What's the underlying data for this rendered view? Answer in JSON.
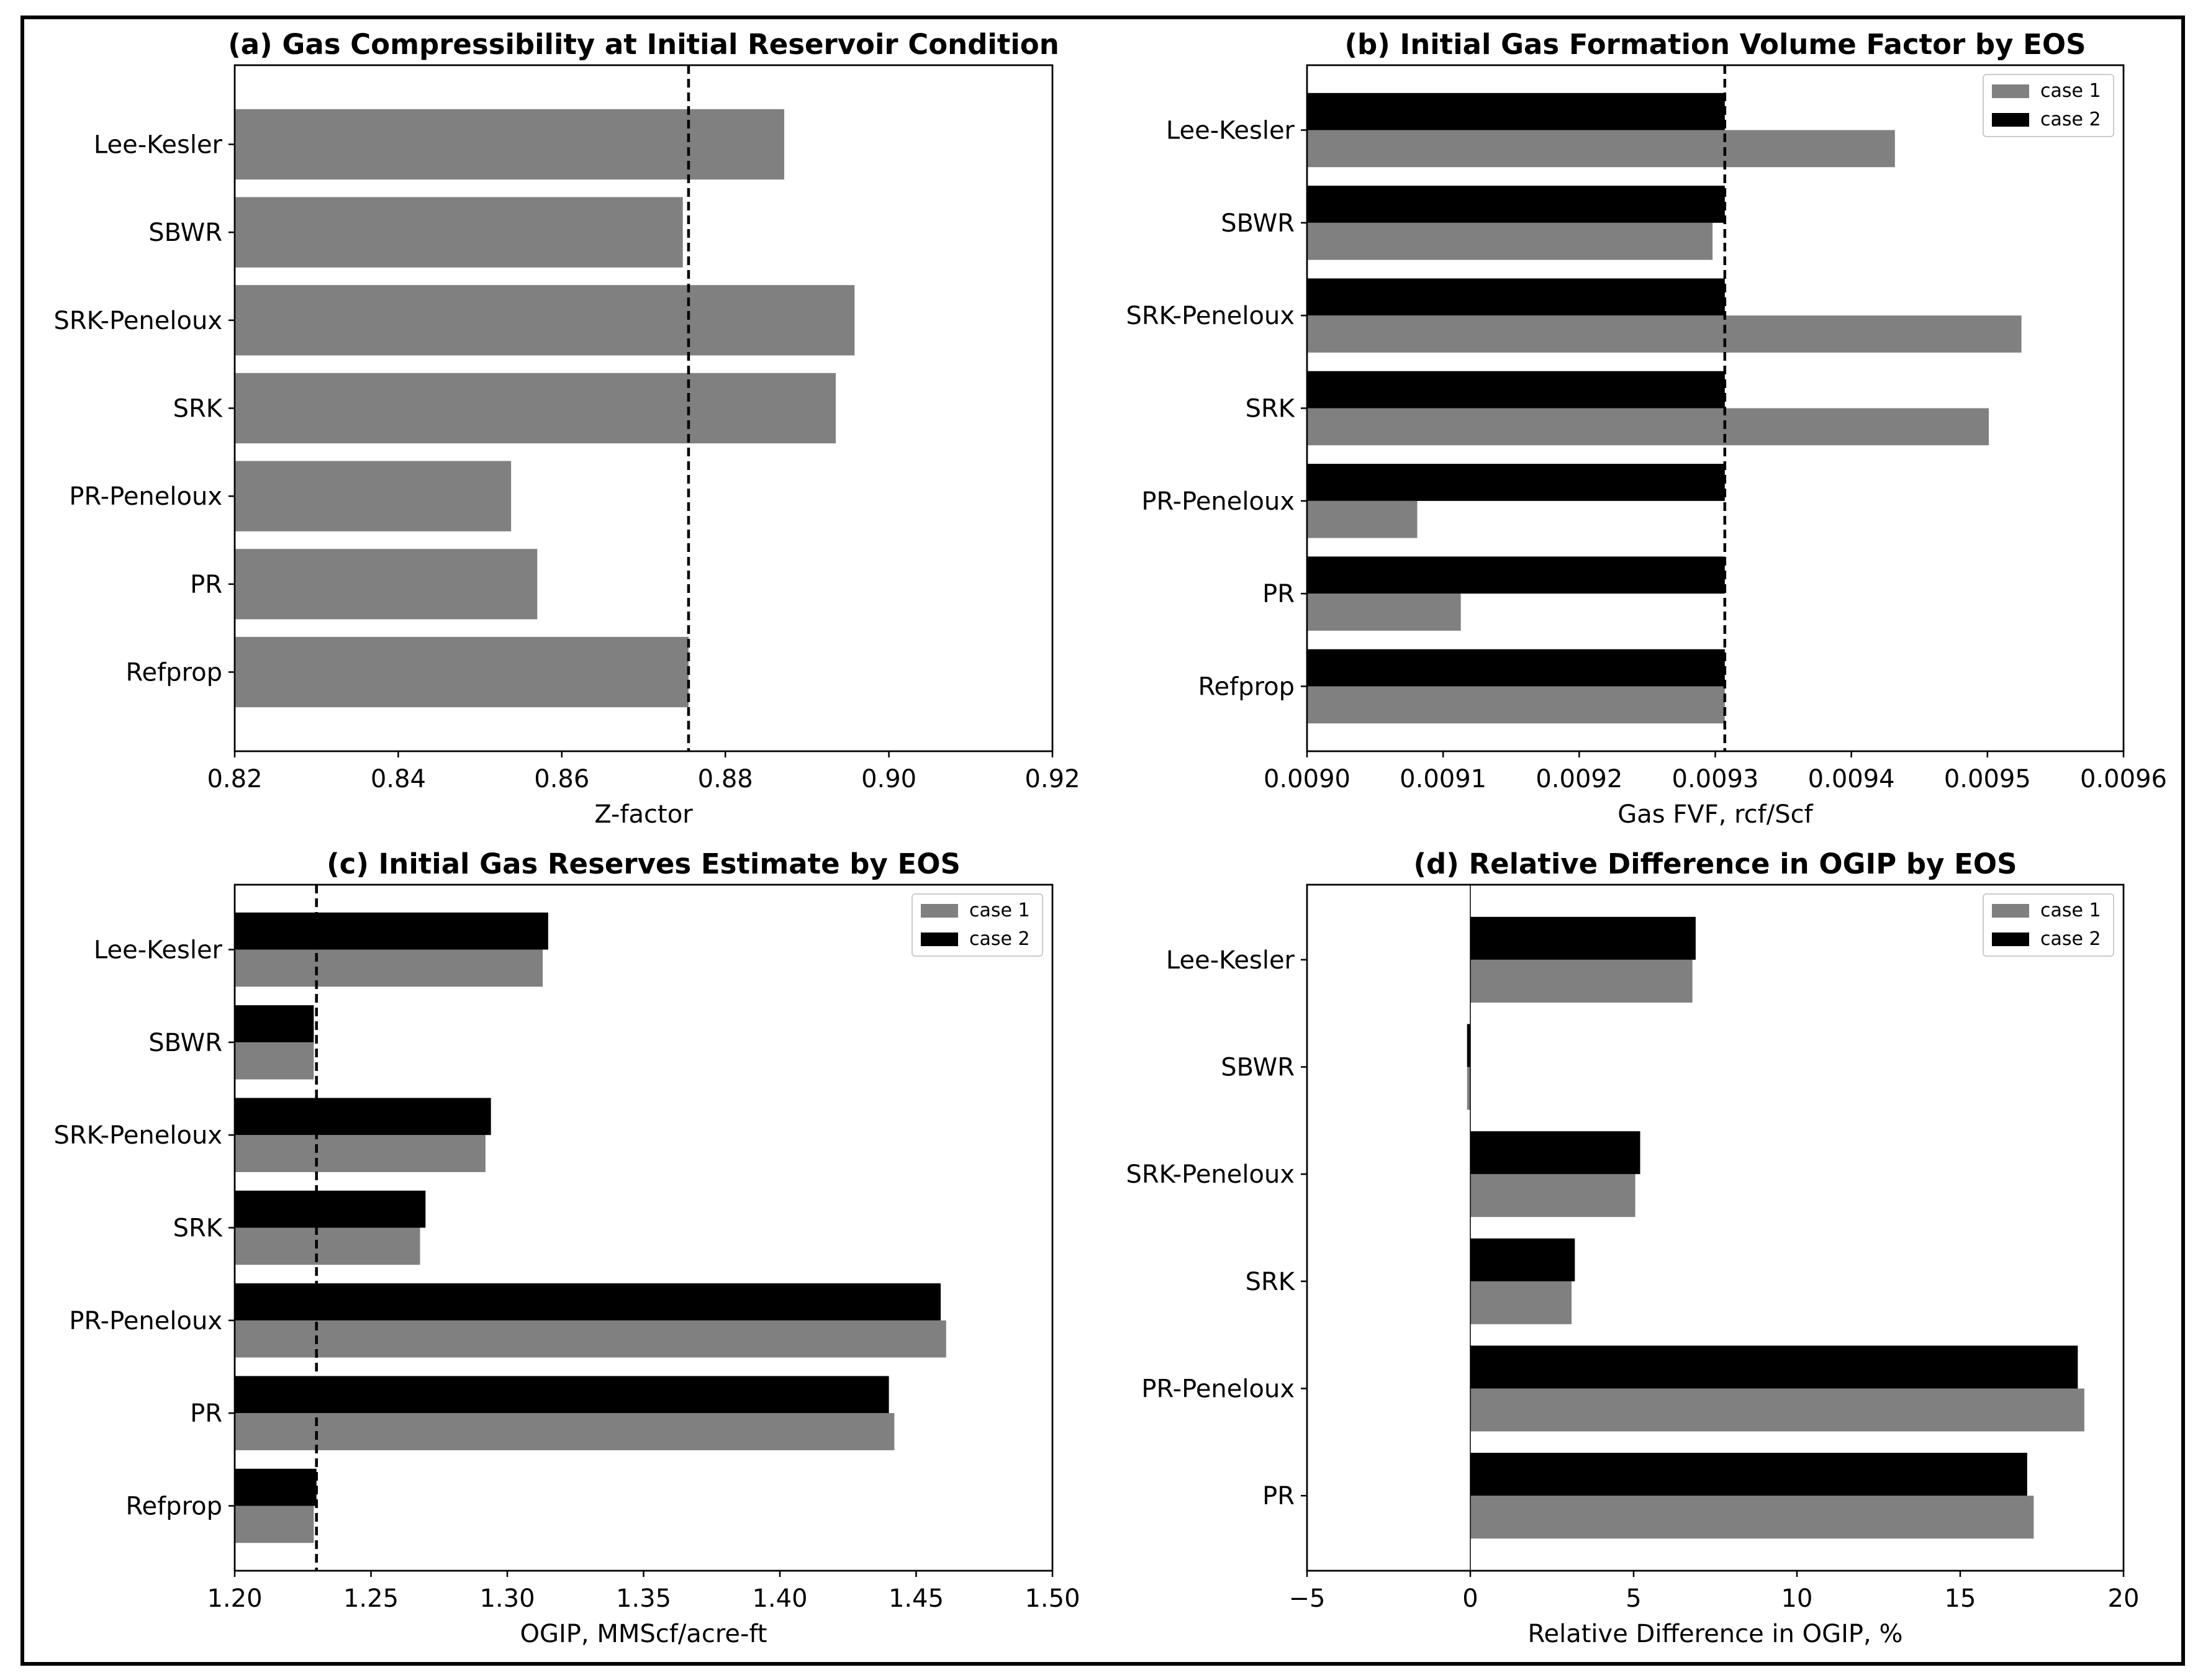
{
  "colors": {
    "case1": "#808080",
    "case2": "#000000"
  },
  "chart_data": [
    {
      "id": "a",
      "type": "bar",
      "orientation": "horizontal",
      "title": "(a) Gas Compressibility at Initial Reservoir Condition",
      "xlabel": "Z-factor",
      "ylabel": "",
      "xlim": [
        0.82,
        0.92
      ],
      "xticks": [
        0.82,
        0.84,
        0.86,
        0.88,
        0.9,
        0.92
      ],
      "xtick_labels": [
        "0.82",
        "0.84",
        "0.86",
        "0.88",
        "0.90",
        "0.92"
      ],
      "categories": [
        "Refprop",
        "PR",
        "PR-Peneloux",
        "SRK",
        "SRK-Peneloux",
        "SBWR",
        "Lee-Kesler"
      ],
      "series": [
        {
          "name": "",
          "color": "#808080",
          "values": [
            0.8755,
            0.857,
            0.8538,
            0.8935,
            0.8958,
            0.8748,
            0.8872
          ]
        }
      ],
      "reference_line": 0.8755,
      "legend": null
    },
    {
      "id": "b",
      "type": "bar",
      "orientation": "horizontal",
      "title": "(b) Initial Gas Formation Volume Factor by EOS",
      "xlabel": "Gas FVF, rcf/Scf",
      "ylabel": "",
      "xlim": [
        0.009,
        0.0096
      ],
      "xticks": [
        0.009,
        0.0091,
        0.0092,
        0.0093,
        0.0094,
        0.0095,
        0.0096
      ],
      "xtick_labels": [
        "0.0090",
        "0.0091",
        "0.0092",
        "0.0093",
        "0.0094",
        "0.0095",
        "0.0096"
      ],
      "categories": [
        "Refprop",
        "PR",
        "PR-Peneloux",
        "SRK",
        "SRK-Peneloux",
        "SBWR",
        "Lee-Kesler"
      ],
      "series": [
        {
          "name": "case 1",
          "color": "#808080",
          "values": [
            0.009307,
            0.009113,
            0.009081,
            0.009501,
            0.009525,
            0.009298,
            0.009432
          ]
        },
        {
          "name": "case 2",
          "color": "#000000",
          "values": [
            0.009307,
            0.009307,
            0.009307,
            0.009307,
            0.009307,
            0.009307,
            0.009307
          ]
        }
      ],
      "reference_line": 0.009307,
      "legend": "upper right"
    },
    {
      "id": "c",
      "type": "bar",
      "orientation": "horizontal",
      "title": "(c) Initial Gas Reserves Estimate by EOS",
      "xlabel": "OGIP, MMScf/acre-ft",
      "ylabel": "",
      "xlim": [
        1.2,
        1.5
      ],
      "xticks": [
        1.2,
        1.25,
        1.3,
        1.35,
        1.4,
        1.45,
        1.5
      ],
      "xtick_labels": [
        "1.20",
        "1.25",
        "1.30",
        "1.35",
        "1.40",
        "1.45",
        "1.50"
      ],
      "categories": [
        "Refprop",
        "PR",
        "PR-Peneloux",
        "SRK",
        "SRK-Peneloux",
        "SBWR",
        "Lee-Kesler"
      ],
      "series": [
        {
          "name": "case 1",
          "color": "#808080",
          "values": [
            1.229,
            1.442,
            1.461,
            1.268,
            1.292,
            1.229,
            1.313
          ]
        },
        {
          "name": "case 2",
          "color": "#000000",
          "values": [
            1.23,
            1.44,
            1.459,
            1.27,
            1.294,
            1.229,
            1.315
          ]
        }
      ],
      "reference_line": 1.23,
      "legend": "upper right"
    },
    {
      "id": "d",
      "type": "bar",
      "orientation": "horizontal",
      "title": "(d) Relative Difference in OGIP by EOS",
      "xlabel": "Relative Difference in OGIP, %",
      "ylabel": "",
      "xlim": [
        -5,
        20
      ],
      "xticks": [
        -5,
        0,
        5,
        10,
        15,
        20
      ],
      "xtick_labels": [
        "−5",
        "0",
        "5",
        "10",
        "15",
        "20"
      ],
      "categories": [
        "PR",
        "PR-Peneloux",
        "SRK",
        "SRK-Peneloux",
        "SBWR",
        "Lee-Kesler"
      ],
      "series": [
        {
          "name": "case 1",
          "color": "#808080",
          "values": [
            17.25,
            18.8,
            3.1,
            5.05,
            -0.1,
            6.8
          ]
        },
        {
          "name": "case 2",
          "color": "#000000",
          "values": [
            17.05,
            18.6,
            3.2,
            5.2,
            -0.1,
            6.9
          ]
        }
      ],
      "zero_line": 0,
      "legend": "upper right"
    }
  ]
}
